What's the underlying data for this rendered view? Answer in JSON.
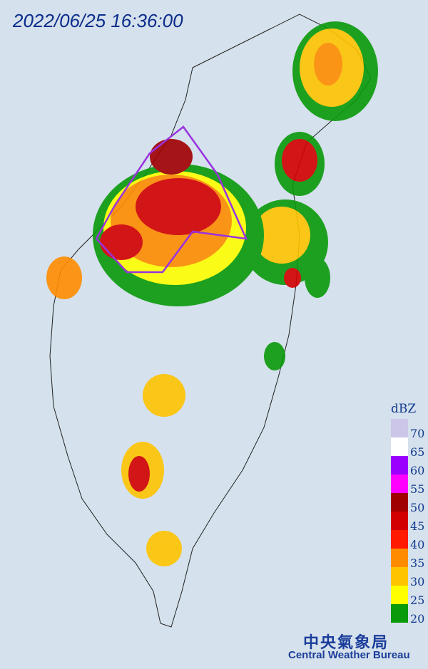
{
  "timestamp": "2022/06/25 16:36:00",
  "legend": {
    "unit": "dBZ",
    "levels": [
      {
        "value": 70,
        "color": "#ccc6e8"
      },
      {
        "value": 65,
        "color": "#ffffff"
      },
      {
        "value": 60,
        "color": "#9b00ff"
      },
      {
        "value": 55,
        "color": "#ff00ff"
      },
      {
        "value": 50,
        "color": "#a00000"
      },
      {
        "value": 45,
        "color": "#d20000"
      },
      {
        "value": 40,
        "color": "#ff1a00"
      },
      {
        "value": 35,
        "color": "#ff8c00"
      },
      {
        "value": 30,
        "color": "#ffc400"
      },
      {
        "value": 25,
        "color": "#ffff00"
      },
      {
        "value": 20,
        "color": "#0a9a0a"
      }
    ]
  },
  "footer": {
    "agency_zh": "中央氣象局",
    "agency_en": "Central Weather Bureau"
  }
}
